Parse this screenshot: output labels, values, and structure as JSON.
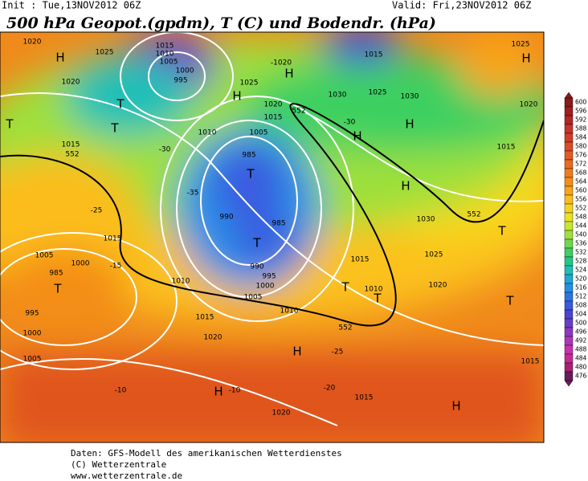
{
  "header": {
    "init": "Init : Tue,13NOV2012 06Z",
    "valid": "Valid: Fri,23NOV2012 06Z",
    "title": "500 hPa Geopot.(gpdm), T (C) und Bodendr. (hPa)"
  },
  "map": {
    "labels": [
      "1020",
      "H",
      "1015",
      "1010",
      "1025",
      "1005",
      "1000",
      "995",
      "1020",
      "H",
      "1025",
      "-1020",
      "H",
      "1015",
      "1025",
      "H",
      "1020",
      "1030",
      "1025",
      "1030",
      "H",
      "1020",
      "1015",
      "T",
      "T",
      "T",
      "1010",
      "1005",
      "985",
      "T",
      "1015",
      "-30",
      "-35",
      "990",
      "985",
      "T",
      "990",
      "995",
      "1000",
      "1005",
      "1010",
      "1015",
      "1005",
      "1000",
      "985",
      "T",
      "995",
      "1000",
      "1005",
      "1010",
      "1015",
      "1020",
      "H",
      "H",
      "-10",
      "-10",
      "1020",
      "1015",
      "H",
      "1015",
      "1020",
      "1025",
      "1030",
      "T",
      "T",
      "1010",
      "T",
      "1015",
      "H",
      "-30",
      "H",
      "T",
      "-25",
      "-20",
      "1015",
      "-25",
      "-15",
      "552",
      "552",
      "552",
      "552"
    ]
  },
  "colorbar": {
    "labels": [
      600,
      596,
      592,
      588,
      584,
      580,
      576,
      572,
      568,
      564,
      560,
      556,
      552,
      548,
      544,
      540,
      536,
      532,
      528,
      524,
      520,
      516,
      512,
      508,
      504,
      500,
      496,
      492,
      488,
      484,
      480,
      476
    ],
    "colors": [
      "#8b1a1a",
      "#a01e1e",
      "#b52424",
      "#c8322a",
      "#d23c28",
      "#dc4a26",
      "#e45a22",
      "#ea6a1e",
      "#f07c1a",
      "#f48e18",
      "#f8a418",
      "#fbbd1c",
      "#f5d21e",
      "#e8e41e",
      "#c8e82a",
      "#9ee03a",
      "#6cd84c",
      "#3cd060",
      "#20c88a",
      "#1cc0b8",
      "#1ca8d8",
      "#2090e8",
      "#2a74e8",
      "#3a5ae0",
      "#4a44d4",
      "#6a3ccc",
      "#8c38c4",
      "#ae34bc",
      "#c830b0",
      "#c82890",
      "#a82070",
      "#6a1a5a"
    ]
  },
  "footer": {
    "lines": [
      "Daten: GFS-Modell des amerikanischen Wetterdienstes",
      "(C) Wetterzentrale",
      "www.wetterzentrale.de"
    ]
  }
}
